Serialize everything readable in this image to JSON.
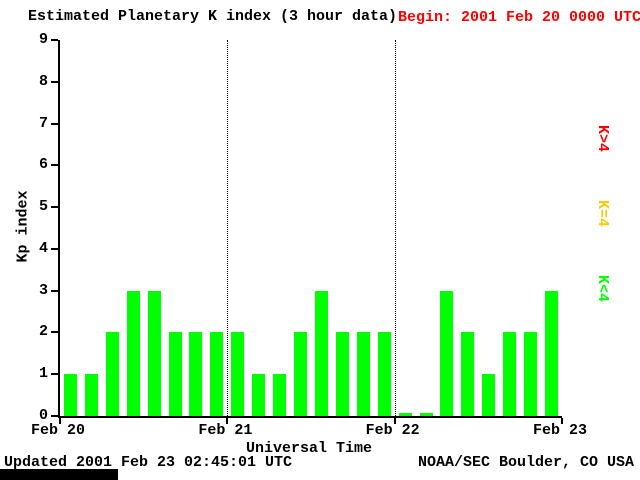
{
  "title": "Estimated Planetary K index (3 hour data)",
  "begin_label": "Begin:  2001 Feb 20 0000 UTC",
  "footer": {
    "updated": "Updated 2001 Feb 23 02:45:01 UTC",
    "credit": "NOAA/SEC Boulder, CO USA"
  },
  "colors": {
    "bar_green": "#00ff00",
    "begin_red": "#ff0000",
    "legend_red": "#ff0000",
    "legend_yellow": "#ffc800",
    "legend_green": "#00ff00"
  },
  "legend": [
    {
      "label": "K>4",
      "color": "#ff0000"
    },
    {
      "label": "K=4",
      "color": "#ffc800"
    },
    {
      "label": "K<4",
      "color": "#00ff00"
    }
  ],
  "chart_data": {
    "type": "bar",
    "title": "Estimated Planetary K index (3 hour data)",
    "xlabel": "Universal Time",
    "ylabel": "Kp index",
    "ylim": [
      0,
      9
    ],
    "yticks": [
      0,
      1,
      2,
      3,
      4,
      5,
      6,
      7,
      8,
      9
    ],
    "xticks": [
      "Feb 20",
      "Feb 21",
      "Feb 22",
      "Feb 23"
    ],
    "bar_color": "#00ff00",
    "bars_per_day": 8,
    "days": 3,
    "interval_hours": 3,
    "values": [
      1,
      1,
      2,
      3,
      3,
      2,
      2,
      2,
      2,
      1,
      1,
      2,
      3,
      2,
      2,
      2,
      0,
      0,
      3,
      2,
      1,
      2,
      2,
      3
    ]
  }
}
